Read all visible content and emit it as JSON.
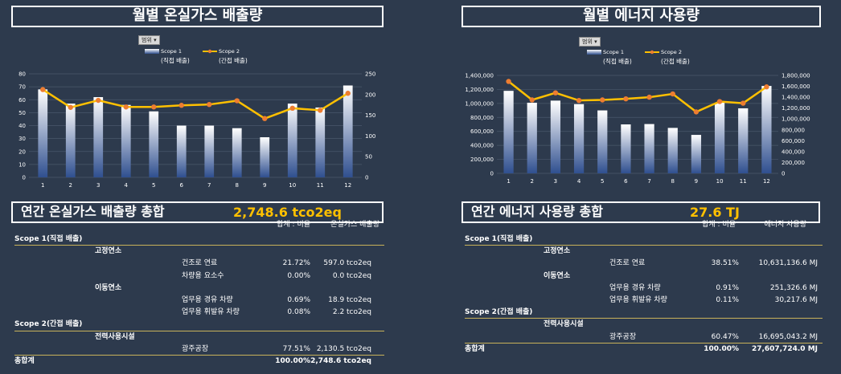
{
  "left": {
    "title": "월별 온실가스 배출량",
    "filter_label": "범위 ▾",
    "summary_label": "연간 온실가스 배출량 총합",
    "summary_value": "2,748.6 tco2eq",
    "table": {
      "headers": [
        "합계 : 비율",
        "온실가스 배출량"
      ],
      "rows": [
        {
          "level": 0,
          "label": "Scope 1(직접 배출)",
          "ratio": "",
          "value": "",
          "bold": true,
          "line": true
        },
        {
          "level": 1,
          "label": "고정연소",
          "ratio": "",
          "value": "",
          "bold": true
        },
        {
          "level": 2,
          "label": "건조로 연료",
          "ratio": "21.72%",
          "value": "597.0 tco2eq"
        },
        {
          "level": 2,
          "label": "차량용 요소수",
          "ratio": "0.00%",
          "value": "0.0 tco2eq"
        },
        {
          "level": 1,
          "label": "이동연소",
          "ratio": "",
          "value": "",
          "bold": true
        },
        {
          "level": 2,
          "label": "업무용 경유 차량",
          "ratio": "0.69%",
          "value": "18.9 tco2eq"
        },
        {
          "level": 2,
          "label": "업무용 휘발유 차량",
          "ratio": "0.08%",
          "value": "2.2 tco2eq"
        },
        {
          "level": 0,
          "label": "Scope 2(간접 배출)",
          "ratio": "",
          "value": "",
          "bold": true,
          "line": true
        },
        {
          "level": 1,
          "label": "전력사용시설",
          "ratio": "",
          "value": "",
          "bold": true
        },
        {
          "level": 2,
          "label": "광주공장",
          "ratio": "77.51%",
          "value": "2,130.5 tco2eq"
        },
        {
          "level": 0,
          "label": "총합계",
          "ratio": "100.00%",
          "value": "2,748.6 tco2eq",
          "bold": true,
          "line": true
        }
      ]
    }
  },
  "right": {
    "title": "월별 에너지 사용량",
    "filter_label": "범위 ▾",
    "summary_label": "연간 에너지 사용량 총합",
    "summary_value": "27.6 TJ",
    "table": {
      "headers": [
        "합계 : 비율",
        "에너지 사용량"
      ],
      "rows": [
        {
          "level": 0,
          "label": "Scope 1(직접 배출)",
          "ratio": "",
          "value": "",
          "bold": true,
          "line": true
        },
        {
          "level": 1,
          "label": "고정연소",
          "ratio": "",
          "value": "",
          "bold": true
        },
        {
          "level": 2,
          "label": "건조로 연료",
          "ratio": "38.51%",
          "value": "10,631,136.6 MJ"
        },
        {
          "level": 1,
          "label": "이동연소",
          "ratio": "",
          "value": "",
          "bold": true
        },
        {
          "level": 2,
          "label": "업무용 경유 차량",
          "ratio": "0.91%",
          "value": "251,326.6 MJ"
        },
        {
          "level": 2,
          "label": "업무용 휘발유 차량",
          "ratio": "0.11%",
          "value": "30,217.6 MJ"
        },
        {
          "level": 0,
          "label": "Scope 2(간접 배출)",
          "ratio": "",
          "value": "",
          "bold": true,
          "line": true
        },
        {
          "level": 1,
          "label": "전력사용시설",
          "ratio": "",
          "value": "",
          "bold": true
        },
        {
          "level": 2,
          "label": "광주공장",
          "ratio": "60.47%",
          "value": "16,695,043.2 MJ"
        },
        {
          "level": 0,
          "label": "총합계",
          "ratio": "100.00%",
          "value": "27,607,724.0 MJ",
          "bold": true,
          "line": true
        }
      ]
    }
  },
  "colors": {
    "background": "#2d3a4d",
    "line": "#ffc000",
    "marker": "#ed7d31",
    "bar_top": "#ffffff",
    "bar_bottom": "#2f4f8f",
    "accent_text": "#ffc000"
  },
  "chart_data": [
    {
      "type": "bar",
      "categories": [
        "1",
        "2",
        "3",
        "4",
        "5",
        "6",
        "7",
        "8",
        "9",
        "10",
        "11",
        "12"
      ],
      "series": [
        {
          "name": "Scope 1\n(직접 배출)",
          "kind": "bar",
          "axis": "left",
          "values": [
            68,
            57,
            62,
            56,
            51,
            40,
            40,
            38,
            31,
            57,
            54,
            71
          ]
        },
        {
          "name": "Scope 2\n(간접 배출)",
          "kind": "line",
          "axis": "right",
          "values": [
            212,
            169,
            186,
            170,
            170,
            174,
            176,
            185,
            142,
            167,
            162,
            203
          ]
        }
      ],
      "ylim_left": [
        0,
        80
      ],
      "yticks_left": [
        0,
        10,
        20,
        30,
        40,
        50,
        60,
        70,
        80
      ],
      "ylim_right": [
        0,
        250
      ],
      "yticks_right": [
        0,
        50,
        100,
        150,
        200,
        250
      ],
      "legend_position": "top"
    },
    {
      "type": "bar",
      "categories": [
        "1",
        "2",
        "3",
        "4",
        "5",
        "6",
        "7",
        "8",
        "9",
        "10",
        "11",
        "12"
      ],
      "series": [
        {
          "name": "Scope 1\n(직접 배출)",
          "kind": "bar",
          "axis": "left",
          "values": [
            1180000,
            1010000,
            1040000,
            990000,
            900000,
            700000,
            705000,
            650000,
            550000,
            1010000,
            930000,
            1250000
          ]
        },
        {
          "name": "Scope 2\n(간접 배출)",
          "kind": "line",
          "axis": "right",
          "values": [
            1690000,
            1350000,
            1480000,
            1340000,
            1350000,
            1370000,
            1400000,
            1460000,
            1130000,
            1320000,
            1290000,
            1590000
          ]
        }
      ],
      "ylim_left": [
        0,
        1400000
      ],
      "yticks_left": [
        "0",
        "200,000",
        "400,000",
        "600,000",
        "800,000",
        "1,000,000",
        "1,200,000",
        "1,400,000"
      ],
      "ylim_right": [
        0,
        1800000
      ],
      "yticks_right": [
        "0",
        "200,000",
        "400,000",
        "600,000",
        "800,000",
        "1,000,000",
        "1,200,000",
        "1,400,000",
        "1,600,000",
        "1,800,000"
      ],
      "legend_position": "top"
    }
  ]
}
